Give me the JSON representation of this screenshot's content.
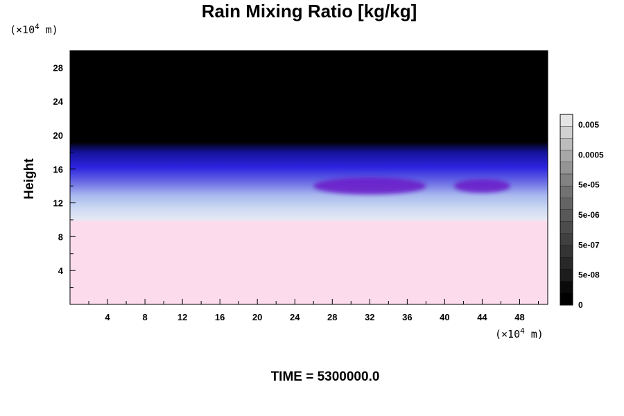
{
  "chart_data": {
    "type": "heatmap",
    "title": "Rain Mixing Ratio [kg/kg]",
    "ylabel": "Height",
    "xlabel": "",
    "y_unit_label": {
      "prefix": "(×10",
      "exp": "4",
      "suffix": " m)"
    },
    "x_unit_label": {
      "prefix": "(×10",
      "exp": "4",
      "suffix": " m)"
    },
    "time_label": "TIME = 5300000.0",
    "xlim": [
      0,
      51
    ],
    "ylim": [
      0,
      30
    ],
    "x_ticks_major": [
      4,
      8,
      12,
      16,
      20,
      24,
      28,
      32,
      36,
      40,
      44,
      48
    ],
    "x_tick_labels": [
      "4",
      "8",
      "12",
      "16",
      "20",
      "24",
      "28",
      "32",
      "36",
      "40",
      "44",
      "48"
    ],
    "y_ticks_major": [
      4,
      8,
      12,
      16,
      20,
      24,
      28
    ],
    "y_tick_labels": [
      "4",
      "8",
      "12",
      "16",
      "20",
      "24",
      "28"
    ],
    "colorbar": {
      "labels": [
        "0.005",
        "0.0005",
        "5e-05",
        "5e-06",
        "5e-07",
        "5e-08",
        "0"
      ],
      "levels": 16,
      "colors": [
        "#000000",
        "#0a0a0a",
        "#1c1c1c",
        "#282828",
        "#343434",
        "#404040",
        "#4c4c4c",
        "#585858",
        "#646464",
        "#727272",
        "#828282",
        "#949494",
        "#a8a8a8",
        "#bcbcbc",
        "#d0d0d0",
        "#e4e4e4"
      ]
    },
    "layers": [
      {
        "name": "",
        "y_from": 0,
        "y_to": 10,
        "color": "#fcdcec"
      },
      {
        "name": "",
        "y_from": 10,
        "y_to": 12,
        "color": "#d8e8f4"
      },
      {
        "name": "",
        "y_from": 12,
        "y_to": 15,
        "color": "#a8b8ee"
      },
      {
        "name": "",
        "y_from": 15,
        "y_to": 19,
        "color": "#2a20dc"
      },
      {
        "name": "",
        "y_from": 19,
        "y_to": 30,
        "color": "#000000"
      }
    ],
    "features": [
      {
        "x_center": 32,
        "y": 14,
        "width": 12,
        "height": 2,
        "color": "#6a18c8"
      },
      {
        "x_center": 44,
        "y": 14,
        "width": 6,
        "height": 1.6,
        "color": "#6a18c8"
      }
    ]
  }
}
